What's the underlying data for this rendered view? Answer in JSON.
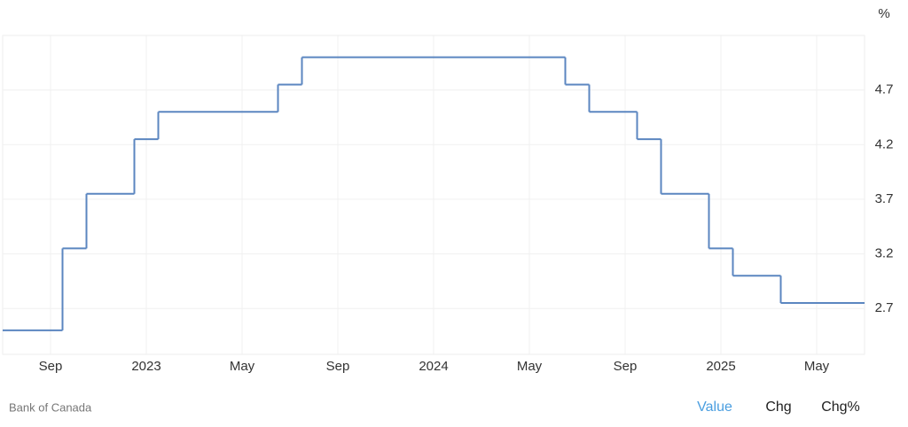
{
  "chart_data": {
    "type": "step",
    "unit": "%",
    "source": "Bank of Canada",
    "x": [
      "2022-07",
      "2022-09",
      "2022-10",
      "2022-12",
      "2023-01",
      "2023-06",
      "2023-07",
      "2024-06",
      "2024-07",
      "2024-09",
      "2024-10",
      "2024-12",
      "2025-01",
      "2025-03"
    ],
    "series": [
      {
        "name": "Value",
        "color": "#5b86c0",
        "values": [
          2.5,
          3.25,
          3.75,
          4.25,
          4.5,
          4.75,
          5.0,
          4.75,
          4.5,
          4.25,
          3.75,
          3.25,
          3.0,
          2.75
        ]
      }
    ],
    "xlim": [
      "2022-07",
      "2025-07"
    ],
    "xticks": [
      {
        "value": "2022-09",
        "label": "Sep"
      },
      {
        "value": "2023-01",
        "label": "2023"
      },
      {
        "value": "2023-05",
        "label": "May"
      },
      {
        "value": "2023-09",
        "label": "Sep"
      },
      {
        "value": "2024-01",
        "label": "2024"
      },
      {
        "value": "2024-05",
        "label": "May"
      },
      {
        "value": "2024-09",
        "label": "Sep"
      },
      {
        "value": "2025-01",
        "label": "2025"
      },
      {
        "value": "2025-05",
        "label": "May"
      }
    ],
    "ylim": [
      2.28,
      5.2
    ],
    "yticks": [
      2.7,
      3.2,
      3.7,
      4.2,
      4.7
    ],
    "grid": true,
    "buttons": [
      "Value",
      "Chg",
      "Chg%"
    ]
  }
}
